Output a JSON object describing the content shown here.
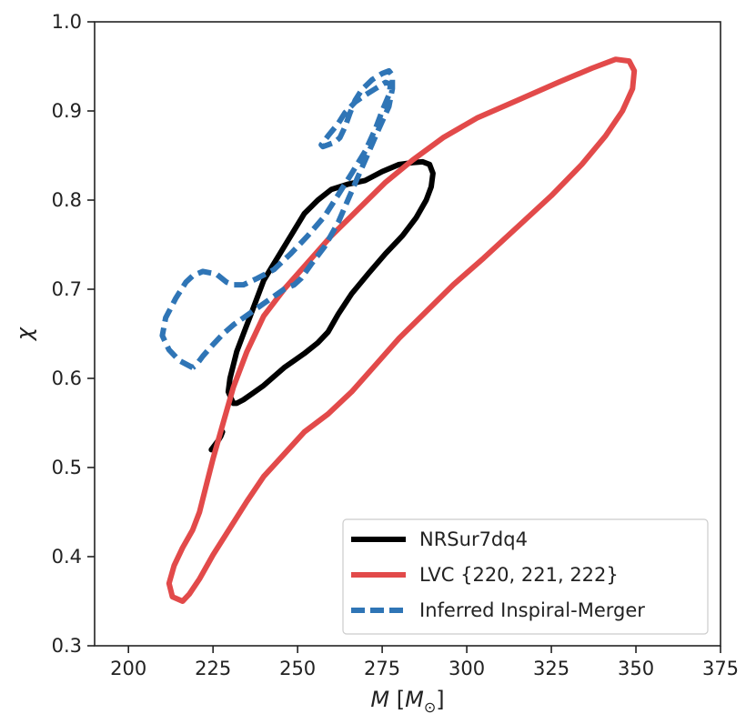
{
  "chart_data": {
    "type": "line",
    "title": "",
    "xlabel": "M [M_⊙]",
    "xlabel_main": "M",
    "xlabel_bracket_open": "[",
    "xlabel_unit": "M",
    "xlabel_unit_sub": "⊙",
    "xlabel_bracket_close": "]",
    "ylabel": "χ",
    "xlim": [
      190,
      375
    ],
    "ylim": [
      0.3,
      1.0
    ],
    "xticks": [
      200,
      225,
      250,
      275,
      300,
      325,
      350,
      375
    ],
    "yticks": [
      0.3,
      0.4,
      0.5,
      0.6,
      0.7,
      0.8,
      0.9,
      1.0
    ],
    "xtick_labels": [
      "200",
      "225",
      "250",
      "275",
      "300",
      "325",
      "350",
      "375"
    ],
    "ytick_labels": [
      "0.3",
      "0.4",
      "0.5",
      "0.6",
      "0.7",
      "0.8",
      "0.9",
      "1.0"
    ],
    "grid": false,
    "legend_position": "bottom-right",
    "series": [
      {
        "name": "NRSur7dq4",
        "color": "#000000",
        "style": "solid",
        "x": [
          231,
          229.5,
          230,
          231,
          232,
          234,
          236,
          238,
          240,
          244,
          248,
          252,
          256,
          260,
          265,
          270,
          275,
          280,
          284,
          287,
          289,
          290,
          289.5,
          288,
          285,
          281,
          276,
          271,
          266,
          262,
          259,
          256,
          252,
          249,
          246,
          243,
          240,
          237,
          234,
          232,
          231
        ],
        "y": [
          0.572,
          0.585,
          0.6,
          0.615,
          0.63,
          0.65,
          0.67,
          0.69,
          0.71,
          0.735,
          0.76,
          0.785,
          0.8,
          0.812,
          0.818,
          0.822,
          0.832,
          0.84,
          0.842,
          0.843,
          0.84,
          0.83,
          0.815,
          0.8,
          0.78,
          0.76,
          0.74,
          0.718,
          0.695,
          0.672,
          0.652,
          0.64,
          0.628,
          0.62,
          0.612,
          0.602,
          0.592,
          0.584,
          0.576,
          0.572,
          0.572
        ]
      },
      {
        "name": "",
        "color": "#000000",
        "style": "solid",
        "x": [
          224.5,
          225.5,
          226.5,
          227.3,
          227.8
        ],
        "y": [
          0.52,
          0.525,
          0.53,
          0.535,
          0.54
        ]
      },
      {
        "name": "LVC {220, 221, 222}",
        "color": "#e24a4a",
        "style": "solid",
        "x": [
          216,
          213,
          212,
          213.5,
          216,
          219,
          221,
          223,
          225,
          228,
          231,
          235,
          240,
          246,
          253,
          260,
          268,
          276,
          284,
          293,
          303,
          315,
          327,
          337,
          344,
          348,
          349.5,
          349,
          346,
          341,
          334,
          325,
          315,
          305,
          296,
          288,
          280,
          273,
          266,
          259,
          252,
          246,
          240,
          235,
          230,
          225,
          221,
          218,
          216
        ],
        "y": [
          0.35,
          0.355,
          0.37,
          0.39,
          0.41,
          0.43,
          0.45,
          0.48,
          0.51,
          0.55,
          0.59,
          0.63,
          0.67,
          0.7,
          0.73,
          0.76,
          0.79,
          0.82,
          0.845,
          0.87,
          0.892,
          0.912,
          0.932,
          0.948,
          0.958,
          0.956,
          0.945,
          0.925,
          0.9,
          0.872,
          0.84,
          0.805,
          0.77,
          0.735,
          0.705,
          0.675,
          0.645,
          0.615,
          0.585,
          0.56,
          0.54,
          0.515,
          0.49,
          0.462,
          0.432,
          0.402,
          0.375,
          0.358,
          0.35
        ]
      },
      {
        "name": "Inferred Inspiral-Merger",
        "color": "#2f75b6",
        "style": "dashed",
        "x": [
          219,
          215,
          212,
          210,
          211,
          214,
          217,
          219,
          222,
          226,
          229,
          231,
          234,
          238,
          243,
          248,
          253,
          258,
          262,
          266,
          270,
          273,
          275,
          277,
          277.5,
          276,
          273,
          270,
          267,
          264,
          262,
          259,
          257,
          257.5,
          259,
          261,
          262.5,
          264,
          265.5,
          267,
          269,
          272,
          275,
          277,
          278,
          278,
          277,
          274,
          270,
          266,
          262,
          258,
          254,
          251,
          249,
          246,
          243,
          240,
          237,
          234,
          231,
          228,
          225,
          222,
          220,
          219
        ],
        "y": [
          0.612,
          0.62,
          0.632,
          0.648,
          0.668,
          0.69,
          0.708,
          0.715,
          0.72,
          0.717,
          0.708,
          0.705,
          0.705,
          0.712,
          0.722,
          0.74,
          0.76,
          0.782,
          0.806,
          0.83,
          0.855,
          0.88,
          0.9,
          0.918,
          0.93,
          0.932,
          0.925,
          0.918,
          0.91,
          0.898,
          0.886,
          0.872,
          0.862,
          0.86,
          0.862,
          0.865,
          0.87,
          0.882,
          0.898,
          0.912,
          0.924,
          0.935,
          0.942,
          0.945,
          0.94,
          0.925,
          0.905,
          0.88,
          0.845,
          0.81,
          0.775,
          0.748,
          0.728,
          0.712,
          0.705,
          0.7,
          0.692,
          0.684,
          0.676,
          0.668,
          0.66,
          0.65,
          0.638,
          0.625,
          0.615,
          0.612
        ]
      }
    ]
  }
}
